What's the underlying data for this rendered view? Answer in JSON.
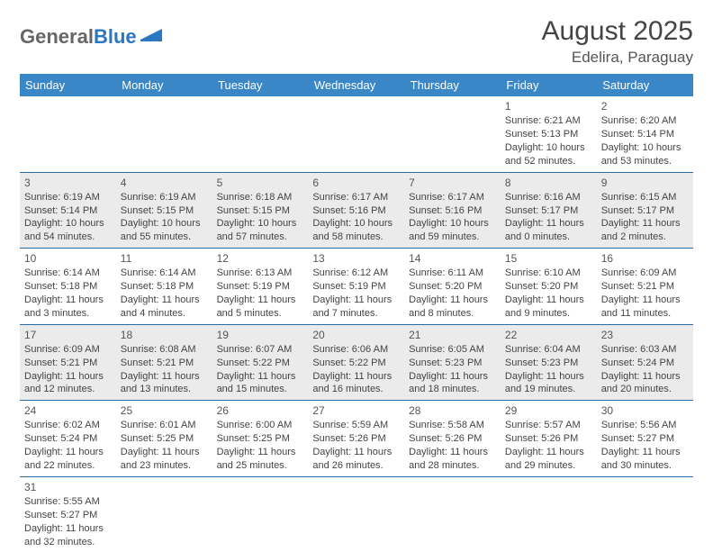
{
  "logo": {
    "text1": "General",
    "text2": "Blue"
  },
  "title": "August 2025",
  "location": "Edelira, Paraguay",
  "colors": {
    "header_bg": "#3a87c8",
    "header_text": "#ffffff",
    "shaded_row": "#ebebeb",
    "border": "#2b6aa8",
    "text": "#444444"
  },
  "dayHeaders": [
    "Sunday",
    "Monday",
    "Tuesday",
    "Wednesday",
    "Thursday",
    "Friday",
    "Saturday"
  ],
  "weeks": [
    [
      null,
      null,
      null,
      null,
      null,
      {
        "num": "1",
        "sunrise": "6:21 AM",
        "sunset": "5:13 PM",
        "dl1": "10 hours",
        "dl2": "and 52 minutes."
      },
      {
        "num": "2",
        "sunrise": "6:20 AM",
        "sunset": "5:14 PM",
        "dl1": "10 hours",
        "dl2": "and 53 minutes."
      }
    ],
    [
      {
        "num": "3",
        "sunrise": "6:19 AM",
        "sunset": "5:14 PM",
        "dl1": "10 hours",
        "dl2": "and 54 minutes."
      },
      {
        "num": "4",
        "sunrise": "6:19 AM",
        "sunset": "5:15 PM",
        "dl1": "10 hours",
        "dl2": "and 55 minutes."
      },
      {
        "num": "5",
        "sunrise": "6:18 AM",
        "sunset": "5:15 PM",
        "dl1": "10 hours",
        "dl2": "and 57 minutes."
      },
      {
        "num": "6",
        "sunrise": "6:17 AM",
        "sunset": "5:16 PM",
        "dl1": "10 hours",
        "dl2": "and 58 minutes."
      },
      {
        "num": "7",
        "sunrise": "6:17 AM",
        "sunset": "5:16 PM",
        "dl1": "10 hours",
        "dl2": "and 59 minutes."
      },
      {
        "num": "8",
        "sunrise": "6:16 AM",
        "sunset": "5:17 PM",
        "dl1": "11 hours",
        "dl2": "and 0 minutes."
      },
      {
        "num": "9",
        "sunrise": "6:15 AM",
        "sunset": "5:17 PM",
        "dl1": "11 hours",
        "dl2": "and 2 minutes."
      }
    ],
    [
      {
        "num": "10",
        "sunrise": "6:14 AM",
        "sunset": "5:18 PM",
        "dl1": "11 hours",
        "dl2": "and 3 minutes."
      },
      {
        "num": "11",
        "sunrise": "6:14 AM",
        "sunset": "5:18 PM",
        "dl1": "11 hours",
        "dl2": "and 4 minutes."
      },
      {
        "num": "12",
        "sunrise": "6:13 AM",
        "sunset": "5:19 PM",
        "dl1": "11 hours",
        "dl2": "and 5 minutes."
      },
      {
        "num": "13",
        "sunrise": "6:12 AM",
        "sunset": "5:19 PM",
        "dl1": "11 hours",
        "dl2": "and 7 minutes."
      },
      {
        "num": "14",
        "sunrise": "6:11 AM",
        "sunset": "5:20 PM",
        "dl1": "11 hours",
        "dl2": "and 8 minutes."
      },
      {
        "num": "15",
        "sunrise": "6:10 AM",
        "sunset": "5:20 PM",
        "dl1": "11 hours",
        "dl2": "and 9 minutes."
      },
      {
        "num": "16",
        "sunrise": "6:09 AM",
        "sunset": "5:21 PM",
        "dl1": "11 hours",
        "dl2": "and 11 minutes."
      }
    ],
    [
      {
        "num": "17",
        "sunrise": "6:09 AM",
        "sunset": "5:21 PM",
        "dl1": "11 hours",
        "dl2": "and 12 minutes."
      },
      {
        "num": "18",
        "sunrise": "6:08 AM",
        "sunset": "5:21 PM",
        "dl1": "11 hours",
        "dl2": "and 13 minutes."
      },
      {
        "num": "19",
        "sunrise": "6:07 AM",
        "sunset": "5:22 PM",
        "dl1": "11 hours",
        "dl2": "and 15 minutes."
      },
      {
        "num": "20",
        "sunrise": "6:06 AM",
        "sunset": "5:22 PM",
        "dl1": "11 hours",
        "dl2": "and 16 minutes."
      },
      {
        "num": "21",
        "sunrise": "6:05 AM",
        "sunset": "5:23 PM",
        "dl1": "11 hours",
        "dl2": "and 18 minutes."
      },
      {
        "num": "22",
        "sunrise": "6:04 AM",
        "sunset": "5:23 PM",
        "dl1": "11 hours",
        "dl2": "and 19 minutes."
      },
      {
        "num": "23",
        "sunrise": "6:03 AM",
        "sunset": "5:24 PM",
        "dl1": "11 hours",
        "dl2": "and 20 minutes."
      }
    ],
    [
      {
        "num": "24",
        "sunrise": "6:02 AM",
        "sunset": "5:24 PM",
        "dl1": "11 hours",
        "dl2": "and 22 minutes."
      },
      {
        "num": "25",
        "sunrise": "6:01 AM",
        "sunset": "5:25 PM",
        "dl1": "11 hours",
        "dl2": "and 23 minutes."
      },
      {
        "num": "26",
        "sunrise": "6:00 AM",
        "sunset": "5:25 PM",
        "dl1": "11 hours",
        "dl2": "and 25 minutes."
      },
      {
        "num": "27",
        "sunrise": "5:59 AM",
        "sunset": "5:26 PM",
        "dl1": "11 hours",
        "dl2": "and 26 minutes."
      },
      {
        "num": "28",
        "sunrise": "5:58 AM",
        "sunset": "5:26 PM",
        "dl1": "11 hours",
        "dl2": "and 28 minutes."
      },
      {
        "num": "29",
        "sunrise": "5:57 AM",
        "sunset": "5:26 PM",
        "dl1": "11 hours",
        "dl2": "and 29 minutes."
      },
      {
        "num": "30",
        "sunrise": "5:56 AM",
        "sunset": "5:27 PM",
        "dl1": "11 hours",
        "dl2": "and 30 minutes."
      }
    ],
    [
      {
        "num": "31",
        "sunrise": "5:55 AM",
        "sunset": "5:27 PM",
        "dl1": "11 hours",
        "dl2": "and 32 minutes."
      },
      null,
      null,
      null,
      null,
      null,
      null
    ]
  ],
  "shaded_week_indices": [
    1,
    3
  ],
  "labels": {
    "sunrise_prefix": "Sunrise: ",
    "sunset_prefix": "Sunset: ",
    "daylight_prefix": "Daylight: "
  }
}
